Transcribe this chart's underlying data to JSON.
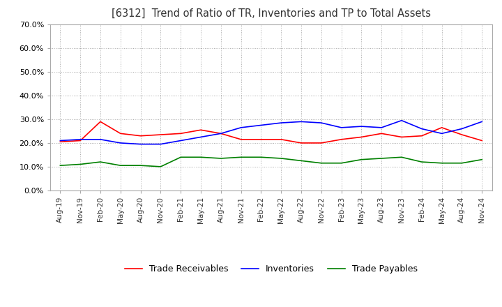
{
  "title": "[6312]  Trend of Ratio of TR, Inventories and TP to Total Assets",
  "x_labels": [
    "Aug-19",
    "Nov-19",
    "Feb-20",
    "May-20",
    "Aug-20",
    "Nov-20",
    "Feb-21",
    "May-21",
    "Aug-21",
    "Nov-21",
    "Feb-22",
    "May-22",
    "Aug-22",
    "Nov-22",
    "Feb-23",
    "May-23",
    "Aug-23",
    "Nov-23",
    "Feb-24",
    "May-24",
    "Aug-24",
    "Nov-24"
  ],
  "trade_receivables": [
    0.205,
    0.21,
    0.29,
    0.24,
    0.23,
    0.235,
    0.24,
    0.255,
    0.24,
    0.215,
    0.215,
    0.215,
    0.2,
    0.2,
    0.215,
    0.225,
    0.24,
    0.225,
    0.23,
    0.265,
    0.235,
    0.21
  ],
  "inventories": [
    0.21,
    0.215,
    0.215,
    0.2,
    0.195,
    0.195,
    0.21,
    0.225,
    0.24,
    0.265,
    0.275,
    0.285,
    0.29,
    0.285,
    0.265,
    0.27,
    0.265,
    0.295,
    0.26,
    0.24,
    0.26,
    0.29
  ],
  "trade_payables": [
    0.105,
    0.11,
    0.12,
    0.105,
    0.105,
    0.1,
    0.14,
    0.14,
    0.135,
    0.14,
    0.14,
    0.135,
    0.125,
    0.115,
    0.115,
    0.13,
    0.135,
    0.14,
    0.12,
    0.115,
    0.115,
    0.13
  ],
  "ylim": [
    0.0,
    0.7
  ],
  "yticks": [
    0.0,
    0.1,
    0.2,
    0.3,
    0.4,
    0.5,
    0.6,
    0.7
  ],
  "tr_color": "#ff0000",
  "inv_color": "#0000ff",
  "tp_color": "#008000",
  "background_color": "#ffffff",
  "grid_color": "#aaaaaa",
  "legend_labels": [
    "Trade Receivables",
    "Inventories",
    "Trade Payables"
  ]
}
